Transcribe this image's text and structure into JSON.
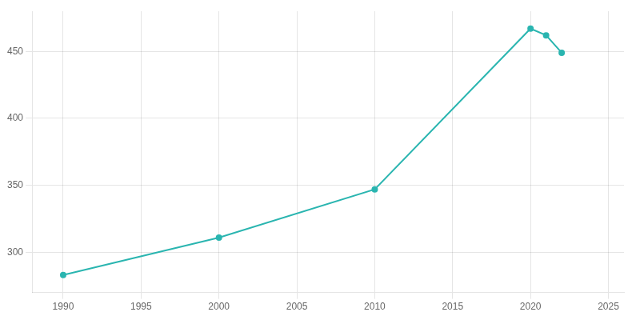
{
  "chart_data": {
    "type": "line",
    "x": [
      1990,
      2000,
      2010,
      2020,
      2021,
      2022
    ],
    "values": [
      283,
      311,
      347,
      467,
      462,
      449
    ],
    "color": "#2ab5b0",
    "marker": "circle",
    "xlim": [
      1988,
      2026
    ],
    "xticks": [
      1990,
      1995,
      2000,
      2005,
      2010,
      2015,
      2020,
      2025
    ],
    "ylim": [
      270,
      480
    ],
    "yticks": [
      300,
      350,
      400,
      450
    ],
    "grid": true
  }
}
